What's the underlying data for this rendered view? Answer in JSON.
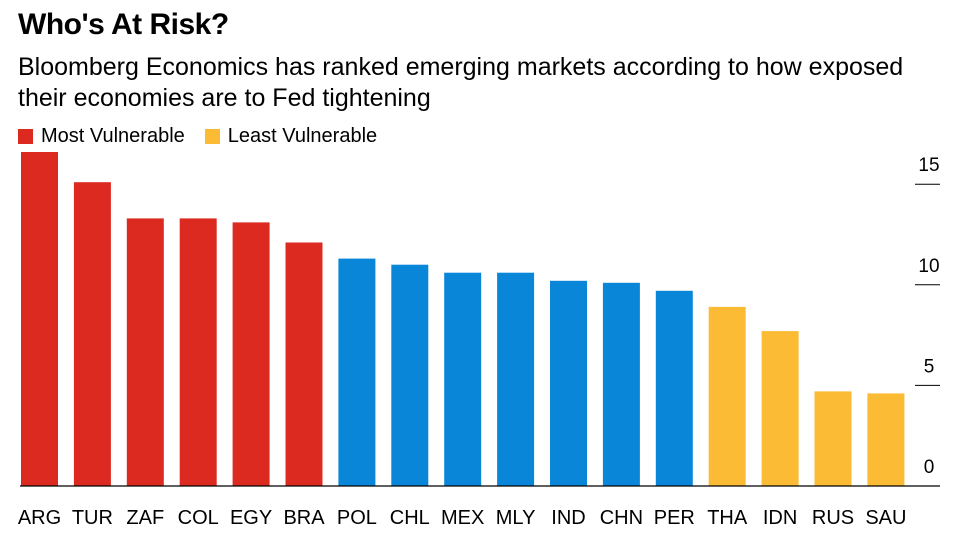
{
  "chart_data": {
    "type": "bar",
    "title": "Who's At Risk?",
    "subtitle": "Bloomberg Economics has ranked emerging markets according to how exposed their economies are to Fed tightening",
    "legend": [
      {
        "label": "Most Vulnerable",
        "color": "#dc2a20"
      },
      {
        "label": "Least Vulnerable",
        "color": "#fbbb34"
      }
    ],
    "legend_placement": "top-left",
    "categories": [
      "ARG",
      "TUR",
      "ZAF",
      "COL",
      "EGY",
      "BRA",
      "POL",
      "CHL",
      "MEX",
      "MLY",
      "IND",
      "CHN",
      "PER",
      "THA",
      "IDN",
      "RUS",
      "SAU"
    ],
    "values": [
      16.6,
      15.1,
      13.3,
      13.3,
      13.1,
      12.1,
      11.3,
      11.0,
      10.6,
      10.6,
      10.2,
      10.1,
      9.7,
      8.9,
      7.7,
      4.7,
      4.6
    ],
    "bar_colors": [
      "#dc2a20",
      "#dc2a20",
      "#dc2a20",
      "#dc2a20",
      "#dc2a20",
      "#dc2a20",
      "#0a86d8",
      "#0a86d8",
      "#0a86d8",
      "#0a86d8",
      "#0a86d8",
      "#0a86d8",
      "#0a86d8",
      "#fbbb34",
      "#fbbb34",
      "#fbbb34",
      "#fbbb34"
    ],
    "yticks": [
      0,
      5,
      10,
      15
    ],
    "ylim": [
      0,
      16.6
    ],
    "y_axis_position": "right",
    "grid": false
  }
}
